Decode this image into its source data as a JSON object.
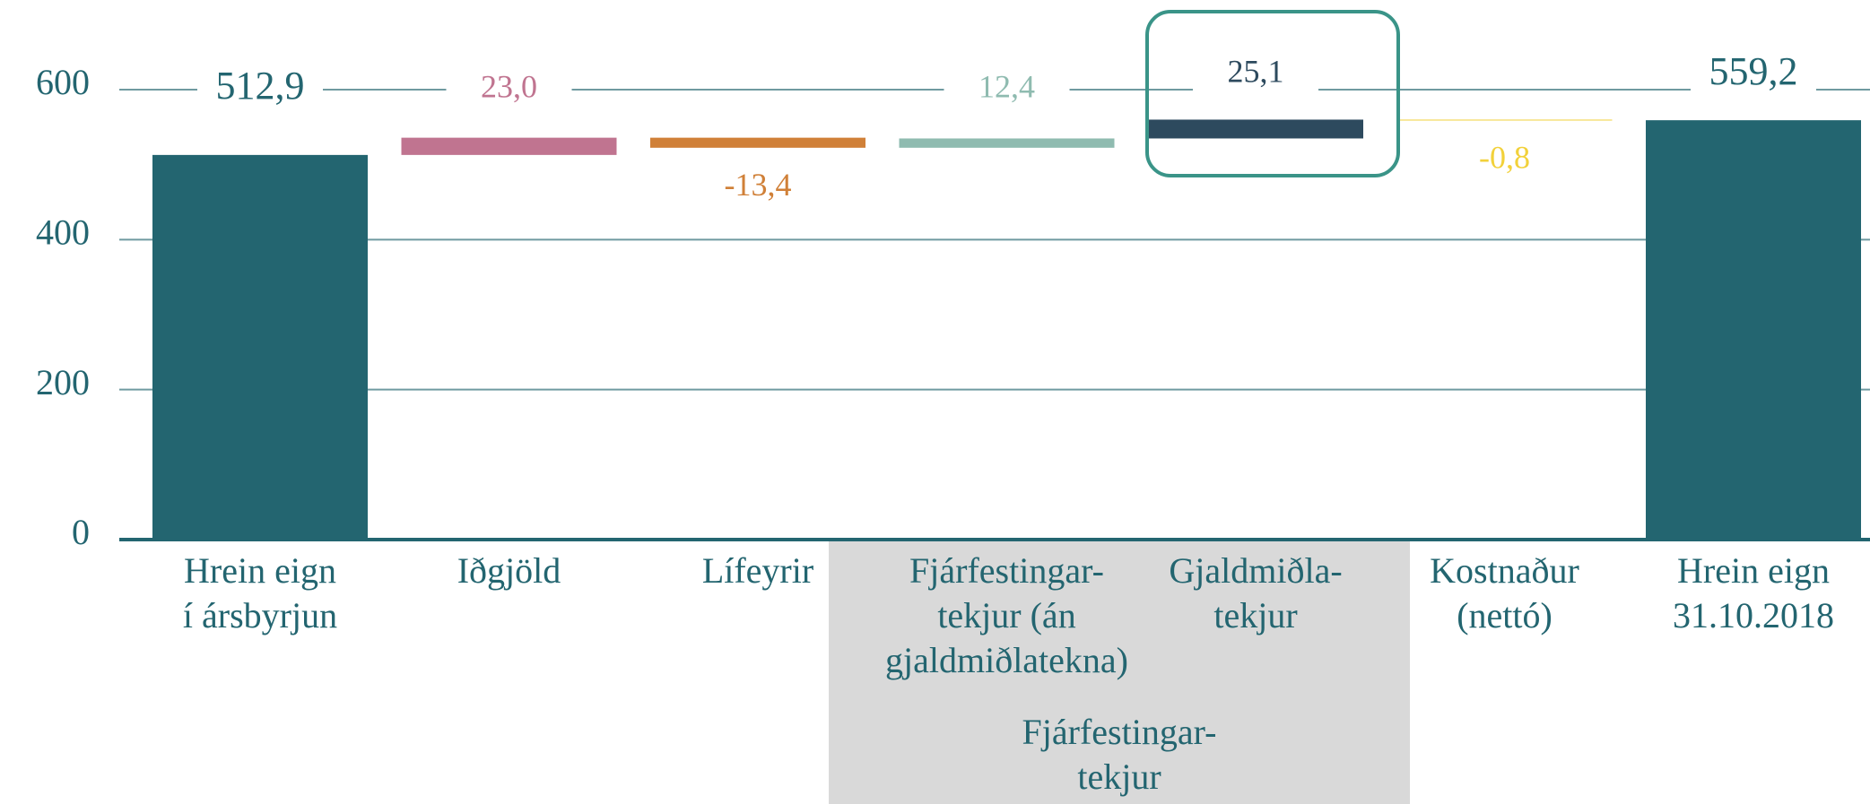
{
  "chart_data": {
    "type": "waterfall",
    "categories": [
      "Hrein eign\ní ársbyrjun",
      "Iðgjöld",
      "Lífeyrir",
      "Fjárfestingar-\ntekjur (án\ngjaldmiðlatekna)",
      "Gjaldmiðla-\ntekjur",
      "Kostnaður\n(nettó)",
      "Hrein eign\n31.10.2018"
    ],
    "values": [
      512.9,
      23.0,
      -13.4,
      12.4,
      25.1,
      -0.8,
      559.2
    ],
    "value_labels": [
      "512,9",
      "23,0",
      "-13,4",
      "12,4",
      "25,1",
      "-0,8",
      "559,2"
    ],
    "measure": [
      "absolute",
      "relative",
      "relative",
      "relative",
      "relative",
      "relative",
      "total"
    ],
    "colors": [
      "#236570",
      "#c07490",
      "#d08038",
      "#8fbbb0",
      "#2d4a5e",
      "#f2d13a",
      "#236570"
    ],
    "ylim": [
      0,
      600
    ],
    "yticks": [
      0,
      200,
      400,
      600
    ],
    "grid": true,
    "group_label": "Fjárfestingar-\ntekjur"
  }
}
